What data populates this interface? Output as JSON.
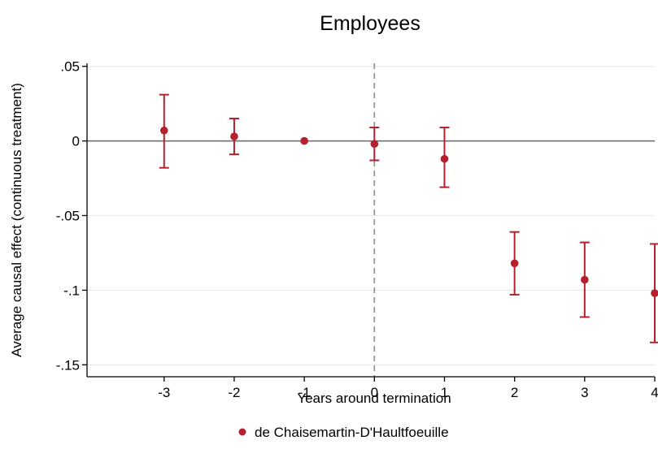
{
  "chart_data": {
    "type": "scatter",
    "title": "Employees",
    "xlabel": "Years around termination",
    "ylabel": "Average causal effect (continuous treatment)",
    "x_ticks": [
      -3,
      -2,
      -1,
      0,
      1,
      2,
      3,
      4
    ],
    "x_tick_labels": [
      "-3",
      "-2",
      "-1",
      "0",
      "1",
      "2",
      "3",
      "4"
    ],
    "y_ticks": [
      0.05,
      0,
      -0.05,
      -0.1,
      -0.15
    ],
    "y_tick_labels": [
      ".05",
      "0",
      "-.05",
      "-.1",
      "-.15"
    ],
    "xlim": [
      -4.1,
      4
    ],
    "ylim": [
      -0.158,
      0.052
    ],
    "reference_line_y": 0,
    "reference_line_x": 0,
    "grid": true,
    "legend_position": "bottom",
    "series": [
      {
        "name": "de Chaisemartin-D'Haultfoeuille",
        "color": "#b5202e",
        "points": [
          {
            "x": -3,
            "y": 0.007,
            "lo": -0.018,
            "hi": 0.031
          },
          {
            "x": -2,
            "y": 0.003,
            "lo": -0.009,
            "hi": 0.015
          },
          {
            "x": -1,
            "y": 0.0,
            "lo": null,
            "hi": null
          },
          {
            "x": 0,
            "y": -0.002,
            "lo": -0.013,
            "hi": 0.009
          },
          {
            "x": 1,
            "y": -0.012,
            "lo": -0.031,
            "hi": 0.009
          },
          {
            "x": 2,
            "y": -0.082,
            "lo": -0.103,
            "hi": -0.061
          },
          {
            "x": 3,
            "y": -0.093,
            "lo": -0.118,
            "hi": -0.068
          },
          {
            "x": 4,
            "y": -0.102,
            "lo": -0.135,
            "hi": -0.069
          }
        ]
      }
    ]
  }
}
